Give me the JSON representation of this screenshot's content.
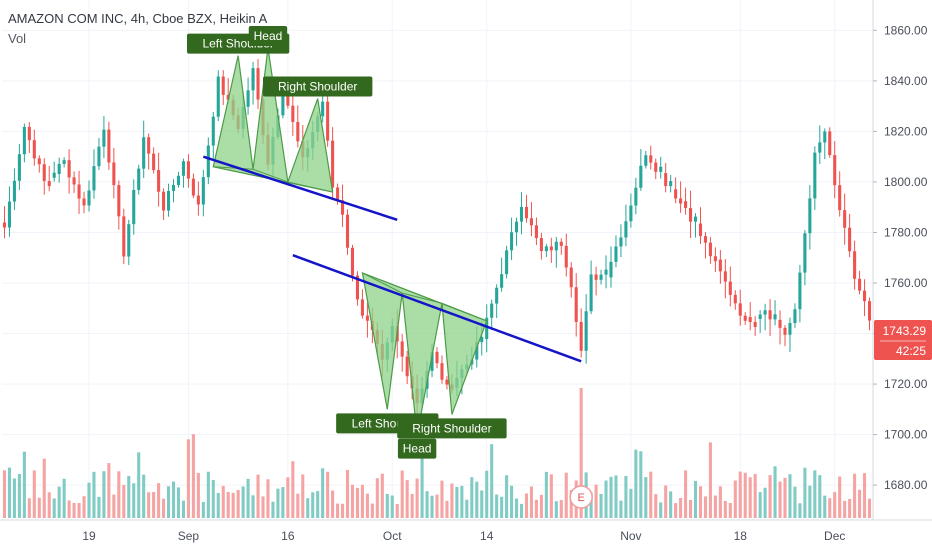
{
  "header": {
    "title": "AMAZON COM INC, 4h, Cboe BZX, Heikin A",
    "indicator": "Vol"
  },
  "price_badges": {
    "last_price": "1743.29",
    "countdown": "42:25",
    "badge_color": "#ef5350"
  },
  "earnings_marker": "E",
  "colors": {
    "up": "#26a69a",
    "down": "#ef5350",
    "vol_up": "#80cbc4",
    "vol_down": "#f5a3a3",
    "trendline": "#1414c8",
    "pattern_fill": "#8fd18a",
    "label_bg": "#33691e"
  },
  "chart_data": {
    "type": "candlestick",
    "y_axis": {
      "min": 1667,
      "max": 1872,
      "ticks": [
        1680,
        1700,
        1720,
        1740,
        1760,
        1780,
        1800,
        1820,
        1840,
        1860
      ],
      "position": "right"
    },
    "x_axis": {
      "tick_labels": [
        "19",
        "Sep",
        "16",
        "Oct",
        "14",
        "Nov",
        "18",
        "Dec"
      ],
      "tick_bars": [
        17,
        37,
        57,
        78,
        97,
        126,
        148,
        167
      ]
    },
    "grid": true,
    "bar_count": 175,
    "key_points": [
      [
        0,
        1782
      ],
      [
        4,
        1822
      ],
      [
        8,
        1800
      ],
      [
        12,
        1808
      ],
      [
        16,
        1790
      ],
      [
        20,
        1822
      ],
      [
        24,
        1772
      ],
      [
        28,
        1818
      ],
      [
        32,
        1790
      ],
      [
        36,
        1808
      ],
      [
        39,
        1790
      ],
      [
        43,
        1840
      ],
      [
        47,
        1822
      ],
      [
        50,
        1844
      ],
      [
        53,
        1808
      ],
      [
        56,
        1838
      ],
      [
        60,
        1808
      ],
      [
        64,
        1832
      ],
      [
        66,
        1798
      ],
      [
        68,
        1788
      ],
      [
        70,
        1762
      ],
      [
        72,
        1748
      ],
      [
        74,
        1740
      ],
      [
        76,
        1728
      ],
      [
        78,
        1742
      ],
      [
        81,
        1725
      ],
      [
        83,
        1713
      ],
      [
        86,
        1732
      ],
      [
        89,
        1718
      ],
      [
        93,
        1728
      ],
      [
        96,
        1738
      ],
      [
        100,
        1765
      ],
      [
        104,
        1792
      ],
      [
        108,
        1772
      ],
      [
        112,
        1776
      ],
      [
        114,
        1760
      ],
      [
        116,
        1733
      ],
      [
        118,
        1762
      ],
      [
        121,
        1764
      ],
      [
        125,
        1785
      ],
      [
        129,
        1812
      ],
      [
        133,
        1800
      ],
      [
        137,
        1790
      ],
      [
        141,
        1775
      ],
      [
        145,
        1760
      ],
      [
        149,
        1745
      ],
      [
        153,
        1750
      ],
      [
        157,
        1740
      ],
      [
        159,
        1748
      ],
      [
        161,
        1780
      ],
      [
        163,
        1810
      ],
      [
        165,
        1820
      ],
      [
        167,
        1798
      ],
      [
        169,
        1780
      ],
      [
        171,
        1762
      ],
      [
        173,
        1752
      ],
      [
        174,
        1744
      ]
    ],
    "trendlines": [
      {
        "from": {
          "bar": 40,
          "price": 1810
        },
        "to": {
          "bar": 79,
          "price": 1785
        }
      },
      {
        "from": {
          "bar": 58,
          "price": 1771
        },
        "to": {
          "bar": 116,
          "price": 1729
        }
      }
    ],
    "patterns": [
      {
        "name": "head_and_shoulders_top",
        "points": [
          {
            "bar": 42,
            "price": 1806
          },
          {
            "bar": 47,
            "price": 1850
          },
          {
            "bar": 50,
            "price": 1805
          },
          {
            "bar": 53,
            "price": 1853
          },
          {
            "bar": 57,
            "price": 1800
          },
          {
            "bar": 63,
            "price": 1833
          },
          {
            "bar": 66,
            "price": 1796
          }
        ],
        "labels": [
          {
            "text": "Left Shoulder",
            "bar": 47,
            "price": 1850,
            "side": "above"
          },
          {
            "text": "Head",
            "bar": 53,
            "price": 1853,
            "side": "above"
          },
          {
            "text": "Right Shoulder",
            "bar": 63,
            "price": 1833,
            "side": "above"
          }
        ]
      },
      {
        "name": "inverse_head_and_shoulders",
        "points": [
          {
            "bar": 72,
            "price": 1764
          },
          {
            "bar": 77,
            "price": 1710
          },
          {
            "bar": 80,
            "price": 1756
          },
          {
            "bar": 83,
            "price": 1700
          },
          {
            "bar": 88,
            "price": 1752
          },
          {
            "bar": 90,
            "price": 1708
          },
          {
            "bar": 97,
            "price": 1745
          }
        ],
        "labels": [
          {
            "text": "Left Shoulder",
            "bar": 77,
            "price": 1710,
            "side": "below"
          },
          {
            "text": "Head",
            "bar": 83,
            "price": 1700,
            "side": "below"
          },
          {
            "text": "Right Shoulder",
            "bar": 90,
            "price": 1708,
            "side": "below"
          }
        ]
      }
    ],
    "earnings_bar": 116
  }
}
